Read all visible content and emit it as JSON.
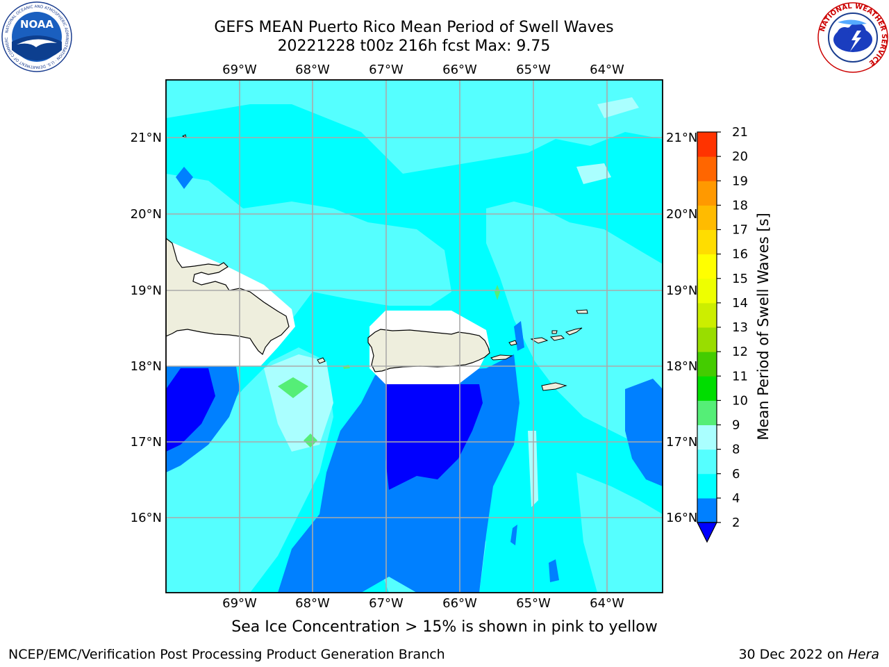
{
  "header": {
    "title_line1": "GEFS MEAN Puerto Rico Mean Period of Swell Waves",
    "title_line2": "20221228 t00z 216h fcst   Max: 9.75"
  },
  "map": {
    "lon_labels": [
      "69°W",
      "68°W",
      "67°W",
      "66°W",
      "65°W",
      "64°W"
    ],
    "lat_labels": [
      "21°N",
      "20°N",
      "19°N",
      "18°N",
      "17°N",
      "16°N"
    ],
    "colors": {
      "ocean_base": "#00ffff",
      "light": "#55ffff",
      "lighter": "#aaffff",
      "mid_blue": "#0080ff",
      "dark_blue": "#0000ff",
      "green": "#55ee77",
      "land": "#eeeedd",
      "mask": "#ffffff",
      "grid": "#aaaaaa"
    }
  },
  "colorbar": {
    "label": "Mean Period of Swell Waves [s]",
    "ticks": [
      "2",
      "4",
      "6",
      "8",
      "9",
      "10",
      "11",
      "12",
      "13",
      "14",
      "15",
      "16",
      "17",
      "18",
      "19",
      "20",
      "21"
    ],
    "colors": [
      "#0080ff",
      "#00ffff",
      "#55ffff",
      "#aaffff",
      "#55ee77",
      "#00dd00",
      "#44cc00",
      "#99dd00",
      "#ccee00",
      "#eeff00",
      "#ffff00",
      "#ffdd00",
      "#ffbb00",
      "#ff9900",
      "#ff6600",
      "#ff3300",
      "#ff0000"
    ],
    "extend_color": "#0000ff"
  },
  "caption": "Sea Ice Concentration > 15% is shown in pink to yellow",
  "footer": {
    "left": "NCEP/EMC/Verification Post Processing Product Generation Branch",
    "right_date": "30 Dec 2022 on ",
    "right_host": "Hera"
  },
  "logos": {
    "noaa_text": "NOAA",
    "noaa_ring": "NATIONAL OCEANIC AND ATMOSPHERIC ADMINISTRATION · U.S. DEPARTMENT OF COMMERCE",
    "nws_ring": "NATIONAL WEATHER SERVICE"
  }
}
